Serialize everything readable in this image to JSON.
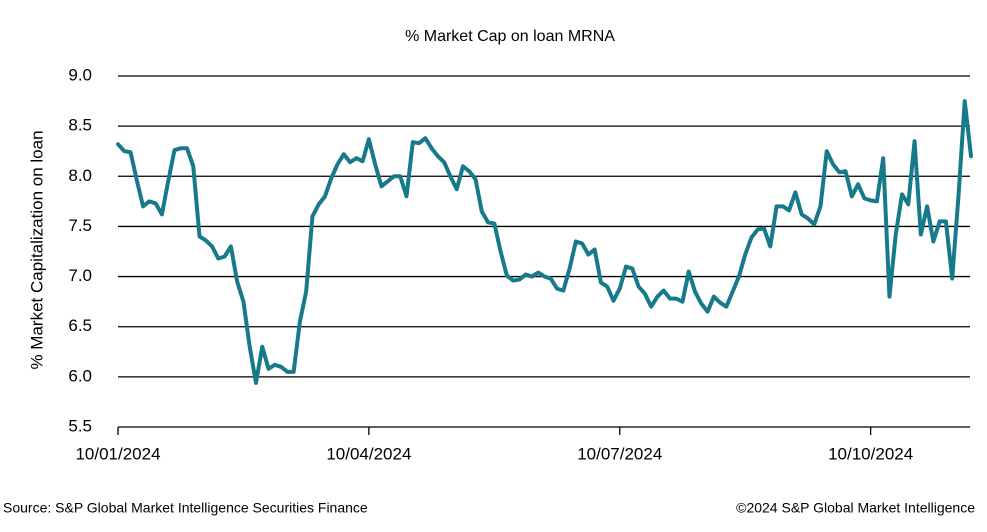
{
  "chart_data": {
    "type": "line",
    "title": "% Market Cap on loan MRNA",
    "y_label": "% Market Capitalization on loan",
    "source": "Source: S&P Global Market Intelligence Securities Finance",
    "copyright": "©2024 S&P Global Market Intelligence",
    "color": "#177a8a",
    "grid": true,
    "ylim": [
      5.5,
      9.0
    ],
    "yticks": [
      5.5,
      {
        "value": 6,
        "label": "6.0"
      },
      6.5,
      {
        "value": 7,
        "label": "7.0"
      },
      7.5,
      {
        "value": 8,
        "label": "8.0"
      },
      8.5,
      {
        "value": 9,
        "label": "9.0"
      }
    ],
    "categories": [
      "10/01/2024",
      null,
      null,
      null,
      null,
      null,
      null,
      null,
      null,
      null,
      null,
      null,
      null,
      null,
      null,
      null,
      null,
      null,
      null,
      null,
      null,
      null,
      null,
      null,
      null,
      null,
      null,
      null,
      null,
      null,
      null,
      null,
      null,
      null,
      null,
      null,
      null,
      null,
      null,
      null,
      "10/04/2024",
      null,
      null,
      null,
      null,
      null,
      null,
      null,
      null,
      null,
      null,
      null,
      null,
      null,
      null,
      null,
      null,
      null,
      null,
      null,
      null,
      null,
      null,
      null,
      null,
      null,
      null,
      null,
      null,
      null,
      null,
      null,
      null,
      null,
      null,
      null,
      null,
      null,
      null,
      null,
      "10/07/2024",
      null,
      null,
      null,
      null,
      null,
      null,
      null,
      null,
      null,
      null,
      null,
      null,
      null,
      null,
      null,
      null,
      null,
      null,
      null,
      null,
      null,
      null,
      null,
      null,
      null,
      null,
      null,
      null,
      null,
      null,
      null,
      null,
      null,
      null,
      null,
      null,
      null,
      null,
      null,
      "10/10/2024",
      null,
      null,
      null,
      null,
      null,
      null,
      null,
      null,
      null,
      null,
      null,
      null,
      null,
      null,
      null,
      null
    ],
    "values": [
      8.32,
      8.25,
      8.24,
      7.96,
      7.7,
      7.75,
      7.73,
      7.62,
      7.95,
      8.26,
      8.28,
      8.28,
      8.1,
      7.4,
      7.36,
      7.3,
      7.18,
      7.2,
      7.3,
      6.95,
      6.75,
      6.3,
      5.94,
      6.3,
      6.08,
      6.12,
      6.1,
      6.05,
      6.05,
      6.55,
      6.85,
      7.6,
      7.72,
      7.8,
      7.98,
      8.12,
      8.22,
      8.14,
      8.18,
      8.15,
      8.37,
      8.12,
      7.9,
      7.95,
      8.0,
      8.0,
      7.8,
      8.34,
      8.33,
      8.38,
      8.28,
      8.2,
      8.14,
      8.0,
      7.87,
      8.1,
      8.05,
      7.97,
      7.65,
      7.54,
      7.53,
      7.25,
      7.01,
      6.96,
      6.97,
      7.02,
      7.0,
      7.04,
      7.0,
      6.98,
      6.88,
      6.86,
      7.08,
      7.35,
      7.33,
      7.22,
      7.27,
      6.94,
      6.9,
      6.76,
      6.88,
      7.1,
      7.08,
      6.9,
      6.83,
      6.7,
      6.8,
      6.86,
      6.78,
      6.78,
      6.75,
      7.05,
      6.85,
      6.73,
      6.65,
      6.8,
      6.74,
      6.7,
      6.85,
      7.0,
      7.22,
      7.39,
      7.47,
      7.48,
      7.3,
      7.7,
      7.7,
      7.66,
      7.84,
      7.62,
      7.58,
      7.52,
      7.7,
      8.25,
      8.12,
      8.04,
      8.05,
      7.8,
      7.92,
      7.78,
      7.76,
      7.75,
      8.18,
      6.8,
      7.42,
      7.82,
      7.72,
      8.35,
      7.42,
      7.7,
      7.35,
      7.55,
      7.55,
      6.98,
      7.8,
      8.75,
      8.2
    ]
  }
}
